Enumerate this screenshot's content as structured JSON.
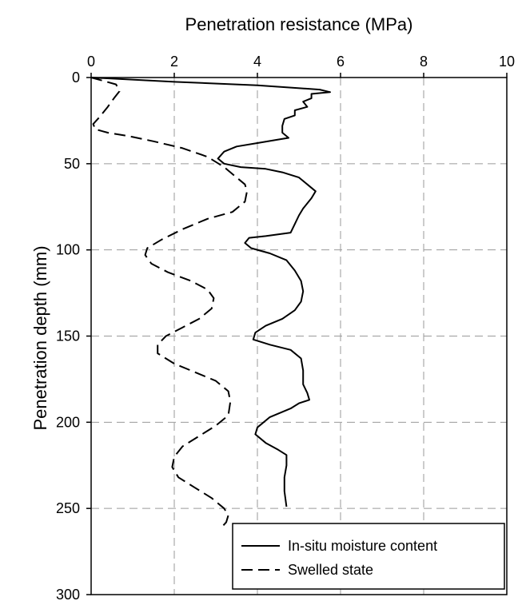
{
  "chart_data": {
    "type": "line",
    "x_axis_label": "Penetration resistance (MPa)",
    "y_axis_label": "Penetration depth (mm)",
    "x_axis_position": "top",
    "y_axis_inverted": true,
    "xlim": [
      0,
      10
    ],
    "ylim": [
      0,
      300
    ],
    "x_ticks": [
      "0",
      "2",
      "4",
      "6",
      "8",
      "10"
    ],
    "y_ticks": [
      "0",
      "50",
      "100",
      "150",
      "200",
      "250",
      "300"
    ],
    "grid": "dashed",
    "legend_position": "bottom-right",
    "series": [
      {
        "name": "In-situ moisture content",
        "line_style": "solid",
        "points": [
          [
            0,
            0
          ],
          [
            2.0,
            2.5
          ],
          [
            4.0,
            4.5
          ],
          [
            5.5,
            7
          ],
          [
            5.75,
            8.5
          ],
          [
            5.3,
            9.5
          ],
          [
            5.3,
            12
          ],
          [
            5.1,
            14
          ],
          [
            5.2,
            17
          ],
          [
            4.9,
            19
          ],
          [
            4.9,
            22
          ],
          [
            4.65,
            24
          ],
          [
            4.6,
            28
          ],
          [
            4.6,
            32
          ],
          [
            4.75,
            35
          ],
          [
            4.5,
            36
          ],
          [
            4.0,
            38
          ],
          [
            3.5,
            40
          ],
          [
            3.2,
            43
          ],
          [
            3.05,
            47
          ],
          [
            3.2,
            50
          ],
          [
            3.6,
            52
          ],
          [
            4.2,
            53
          ],
          [
            4.6,
            55
          ],
          [
            5.0,
            58
          ],
          [
            5.2,
            62
          ],
          [
            5.4,
            66
          ],
          [
            5.3,
            70
          ],
          [
            5.1,
            76
          ],
          [
            5.0,
            80
          ],
          [
            4.9,
            85
          ],
          [
            4.8,
            90
          ],
          [
            4.2,
            92
          ],
          [
            3.8,
            93
          ],
          [
            3.7,
            96
          ],
          [
            3.85,
            99
          ],
          [
            4.3,
            102
          ],
          [
            4.7,
            106
          ],
          [
            4.9,
            112
          ],
          [
            5.05,
            118
          ],
          [
            5.1,
            124
          ],
          [
            5.05,
            130
          ],
          [
            4.9,
            135
          ],
          [
            4.6,
            140
          ],
          [
            4.2,
            144
          ],
          [
            3.95,
            148
          ],
          [
            3.9,
            152
          ],
          [
            4.3,
            155
          ],
          [
            4.8,
            158
          ],
          [
            5.05,
            163
          ],
          [
            5.1,
            170
          ],
          [
            5.1,
            178
          ],
          [
            5.2,
            183
          ],
          [
            5.25,
            187
          ],
          [
            5.0,
            189
          ],
          [
            4.8,
            192
          ],
          [
            4.3,
            197
          ],
          [
            4.0,
            203
          ],
          [
            3.95,
            207
          ],
          [
            4.2,
            212
          ],
          [
            4.5,
            216
          ],
          [
            4.7,
            219
          ],
          [
            4.7,
            225
          ],
          [
            4.65,
            232
          ],
          [
            4.65,
            240
          ],
          [
            4.7,
            249
          ]
        ]
      },
      {
        "name": "Swelled state",
        "line_style": "dashed",
        "points": [
          [
            0,
            0
          ],
          [
            0.6,
            4
          ],
          [
            0.68,
            8
          ],
          [
            0.55,
            12
          ],
          [
            0.4,
            17
          ],
          [
            0.2,
            23
          ],
          [
            0.05,
            27
          ],
          [
            0.1,
            30
          ],
          [
            0.4,
            32
          ],
          [
            0.9,
            34
          ],
          [
            1.5,
            37
          ],
          [
            2.2,
            41
          ],
          [
            2.8,
            46
          ],
          [
            3.2,
            52
          ],
          [
            3.5,
            58
          ],
          [
            3.7,
            62
          ],
          [
            3.75,
            66
          ],
          [
            3.7,
            72
          ],
          [
            3.4,
            78
          ],
          [
            2.8,
            82
          ],
          [
            2.2,
            88
          ],
          [
            1.7,
            94
          ],
          [
            1.35,
            99
          ],
          [
            1.3,
            103
          ],
          [
            1.45,
            108
          ],
          [
            1.85,
            113
          ],
          [
            2.4,
            118
          ],
          [
            2.8,
            123
          ],
          [
            2.95,
            128
          ],
          [
            2.9,
            134
          ],
          [
            2.6,
            140
          ],
          [
            2.2,
            145
          ],
          [
            1.8,
            150
          ],
          [
            1.6,
            155
          ],
          [
            1.6,
            160
          ],
          [
            2.0,
            166
          ],
          [
            2.6,
            172
          ],
          [
            3.0,
            176
          ],
          [
            3.3,
            182
          ],
          [
            3.35,
            188
          ],
          [
            3.3,
            196
          ],
          [
            3.0,
            202
          ],
          [
            2.6,
            208
          ],
          [
            2.2,
            214
          ],
          [
            2.0,
            220
          ],
          [
            1.95,
            226
          ],
          [
            2.1,
            232
          ],
          [
            2.5,
            238
          ],
          [
            2.9,
            244
          ],
          [
            3.2,
            250
          ],
          [
            3.3,
            254
          ],
          [
            3.25,
            258
          ],
          [
            3.1,
            262
          ]
        ]
      }
    ]
  }
}
